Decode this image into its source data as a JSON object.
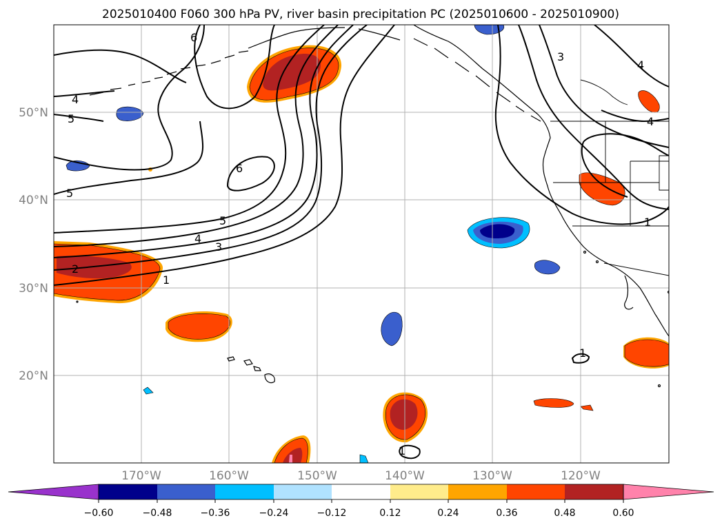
{
  "title": "2025010400 F060 300 hPa PV, river basin precipitation PC (2025010600 - 2025010900)",
  "lat_labels": [
    "50°N",
    "40°N",
    "30°N",
    "20°N"
  ],
  "lon_labels": [
    "170°W",
    "160°W",
    "150°W",
    "140°W",
    "130°W",
    "120°W"
  ],
  "colorbar": {
    "colors": [
      "#9932cc",
      "#00008b",
      "#3a5fcd",
      "#00bfff",
      "#b0e2ff",
      "#ffffff",
      "#ffec8b",
      "#ffa500",
      "#ff4500",
      "#b22222",
      "#ff82ab"
    ],
    "tick_labels": [
      "−0.60",
      "−0.48",
      "−0.36",
      "−0.24",
      "−0.12",
      "0.12",
      "0.24",
      "0.36",
      "0.48",
      "0.60"
    ]
  },
  "contour_labels": [
    "6",
    "5",
    "4",
    "5",
    "1",
    "2",
    "3",
    "4",
    "5",
    "6",
    "3",
    "4",
    "4",
    "1",
    "1",
    "1"
  ],
  "map": {
    "projection": "PlateCarree",
    "extent_lon": [
      -180,
      -110
    ],
    "extent_lat": [
      10,
      60
    ],
    "gridlines": true
  }
}
